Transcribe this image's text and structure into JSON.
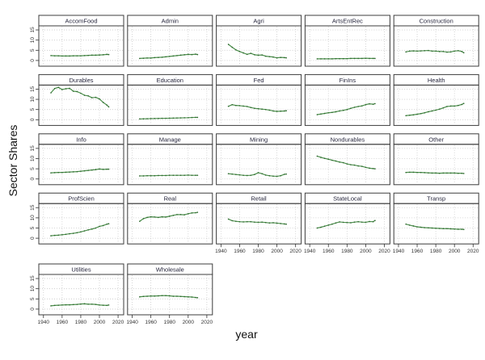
{
  "figure": {
    "background": "#ffffff"
  },
  "axes": {
    "y_label": "Sector Shares",
    "x_label": "year"
  },
  "colors": {
    "line": "#4a8f4a",
    "point": "#2d662d",
    "grid": "#c9c9c9",
    "border": "#3c3c3c",
    "strip_bg": "#ffffff",
    "strip_text": "#26263c",
    "tick_text": "#333333"
  },
  "chart_data": {
    "type": "line",
    "layout": {
      "rows": 5,
      "cols": 5
    },
    "x": {
      "label": "year",
      "ticks": [
        1940,
        1960,
        1980,
        2000,
        2020
      ],
      "range": [
        1935,
        2026
      ]
    },
    "y": {
      "label": "Sector Shares",
      "ticks": [
        0,
        5,
        10,
        15
      ],
      "range": [
        -2.8,
        17
      ]
    },
    "grid": "dotted",
    "legend": "none",
    "years": [
      1948,
      1952,
      1956,
      1960,
      1964,
      1968,
      1972,
      1976,
      1980,
      1984,
      1988,
      1992,
      1996,
      2000,
      2004,
      2008,
      2010
    ],
    "panels": [
      {
        "title": "AccomFood",
        "row": 0,
        "col": 0,
        "values": [
          2.4,
          2.3,
          2.3,
          2.2,
          2.2,
          2.2,
          2.3,
          2.3,
          2.3,
          2.4,
          2.5,
          2.6,
          2.6,
          2.7,
          2.8,
          3.0,
          2.9
        ]
      },
      {
        "title": "Admin",
        "row": 0,
        "col": 1,
        "values": [
          1.0,
          1.1,
          1.2,
          1.2,
          1.4,
          1.5,
          1.6,
          1.8,
          2.0,
          2.2,
          2.4,
          2.6,
          2.8,
          3.0,
          2.9,
          3.1,
          2.9
        ]
      },
      {
        "title": "Agri",
        "row": 0,
        "col": 2,
        "values": [
          7.9,
          6.5,
          5.2,
          4.4,
          3.7,
          3.0,
          3.5,
          2.8,
          2.6,
          2.7,
          2.1,
          1.9,
          1.7,
          1.3,
          1.5,
          1.4,
          1.3
        ]
      },
      {
        "title": "ArtsEntRec",
        "row": 0,
        "col": 3,
        "values": [
          0.8,
          0.8,
          0.8,
          0.8,
          0.8,
          0.9,
          0.9,
          0.9,
          0.9,
          1.0,
          1.0,
          1.0,
          1.0,
          1.1,
          1.0,
          1.0,
          1.0
        ]
      },
      {
        "title": "Construction",
        "row": 0,
        "col": 4,
        "values": [
          4.2,
          4.6,
          4.7,
          4.6,
          4.7,
          4.8,
          4.9,
          4.6,
          4.6,
          4.4,
          4.4,
          4.1,
          4.2,
          4.6,
          4.8,
          4.4,
          3.8
        ]
      },
      {
        "title": "Durables",
        "row": 1,
        "col": 0,
        "values": [
          13.2,
          15.3,
          15.9,
          14.8,
          15.2,
          15.4,
          14.0,
          13.8,
          13.0,
          12.0,
          11.7,
          10.8,
          11.0,
          10.2,
          8.5,
          7.2,
          6.3
        ]
      },
      {
        "title": "Education",
        "row": 1,
        "col": 1,
        "values": [
          0.4,
          0.45,
          0.5,
          0.55,
          0.6,
          0.65,
          0.7,
          0.7,
          0.75,
          0.8,
          0.85,
          0.9,
          0.95,
          1.0,
          1.1,
          1.15,
          1.15
        ]
      },
      {
        "title": "Fed",
        "row": 1,
        "col": 2,
        "values": [
          6.6,
          7.4,
          7.0,
          6.9,
          6.7,
          6.5,
          6.0,
          5.6,
          5.4,
          5.2,
          5.0,
          4.7,
          4.3,
          4.1,
          4.2,
          4.3,
          4.4
        ]
      },
      {
        "title": "FinIns",
        "row": 1,
        "col": 3,
        "values": [
          2.5,
          2.8,
          3.1,
          3.4,
          3.6,
          3.9,
          4.3,
          4.6,
          5.0,
          5.6,
          6.1,
          6.5,
          6.8,
          7.4,
          7.8,
          7.6,
          7.9
        ]
      },
      {
        "title": "Health",
        "row": 1,
        "col": 4,
        "values": [
          2.0,
          2.2,
          2.4,
          2.7,
          3.0,
          3.4,
          3.9,
          4.3,
          4.7,
          5.2,
          5.8,
          6.5,
          6.7,
          6.7,
          7.0,
          7.5,
          8.0
        ]
      },
      {
        "title": "Info",
        "row": 2,
        "col": 0,
        "values": [
          3.0,
          3.1,
          3.2,
          3.2,
          3.3,
          3.4,
          3.5,
          3.6,
          3.8,
          4.0,
          4.2,
          4.4,
          4.6,
          4.9,
          4.7,
          4.8,
          4.8
        ]
      },
      {
        "title": "Manage",
        "row": 2,
        "col": 1,
        "values": [
          1.5,
          1.5,
          1.6,
          1.6,
          1.6,
          1.7,
          1.7,
          1.7,
          1.8,
          1.8,
          1.8,
          1.8,
          1.8,
          1.9,
          1.8,
          1.8,
          1.8
        ]
      },
      {
        "title": "Mining",
        "row": 2,
        "col": 2,
        "values": [
          2.6,
          2.4,
          2.2,
          2.0,
          1.8,
          1.7,
          1.8,
          2.2,
          3.1,
          2.6,
          1.9,
          1.6,
          1.4,
          1.3,
          1.6,
          2.3,
          2.4
        ]
      },
      {
        "title": "Nondurables",
        "row": 2,
        "col": 3,
        "values": [
          11.2,
          10.6,
          10.1,
          9.7,
          9.2,
          8.8,
          8.3,
          8.0,
          7.4,
          7.0,
          6.8,
          6.4,
          6.2,
          5.7,
          5.3,
          5.1,
          5.0
        ]
      },
      {
        "title": "Other",
        "row": 2,
        "col": 4,
        "values": [
          3.2,
          3.3,
          3.3,
          3.2,
          3.2,
          3.1,
          3.0,
          2.9,
          2.9,
          2.8,
          2.9,
          2.9,
          2.9,
          2.9,
          2.8,
          2.8,
          2.7
        ]
      },
      {
        "title": "ProfScien",
        "row": 3,
        "col": 0,
        "values": [
          1.2,
          1.4,
          1.5,
          1.7,
          1.9,
          2.2,
          2.4,
          2.7,
          3.1,
          3.6,
          4.1,
          4.5,
          5.0,
          5.8,
          6.2,
          6.9,
          7.1
        ]
      },
      {
        "title": "Real",
        "row": 3,
        "col": 1,
        "values": [
          8.3,
          9.6,
          10.2,
          10.5,
          10.4,
          10.2,
          10.5,
          10.4,
          10.8,
          11.2,
          11.6,
          11.6,
          11.5,
          12.0,
          12.4,
          12.5,
          12.7
        ]
      },
      {
        "title": "Retail",
        "row": 3,
        "col": 2,
        "values": [
          9.4,
          8.6,
          8.3,
          8.1,
          8.0,
          8.1,
          8.1,
          7.9,
          7.8,
          7.9,
          7.7,
          7.5,
          7.6,
          7.4,
          7.2,
          7.0,
          6.9
        ]
      },
      {
        "title": "StateLocal",
        "row": 3,
        "col": 3,
        "values": [
          5.0,
          5.4,
          5.9,
          6.4,
          6.9,
          7.5,
          8.0,
          7.8,
          7.7,
          7.6,
          7.9,
          8.1,
          7.9,
          7.8,
          8.2,
          8.1,
          8.7
        ]
      },
      {
        "title": "Transp",
        "row": 3,
        "col": 4,
        "values": [
          6.9,
          6.4,
          6.0,
          5.6,
          5.4,
          5.2,
          5.1,
          5.0,
          4.9,
          4.8,
          4.7,
          4.7,
          4.6,
          4.5,
          4.4,
          4.4,
          4.3
        ]
      },
      {
        "title": "Utilities",
        "row": 4,
        "col": 0,
        "values": [
          1.6,
          1.8,
          1.9,
          2.0,
          2.1,
          2.1,
          2.2,
          2.3,
          2.5,
          2.6,
          2.4,
          2.4,
          2.3,
          2.0,
          1.9,
          1.8,
          2.0
        ]
      },
      {
        "title": "Wholesale",
        "row": 4,
        "col": 1,
        "values": [
          6.0,
          6.2,
          6.3,
          6.4,
          6.4,
          6.5,
          6.6,
          6.6,
          6.5,
          6.3,
          6.3,
          6.2,
          6.1,
          6.0,
          5.9,
          5.7,
          5.6
        ]
      }
    ]
  }
}
